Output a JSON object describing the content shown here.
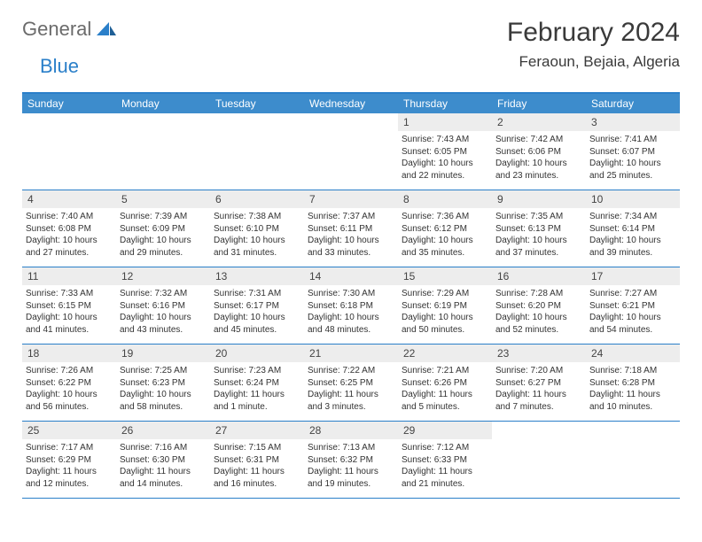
{
  "logo": {
    "text1": "General",
    "text2": "Blue"
  },
  "title": "February 2024",
  "location": "Feraoun, Bejaia, Algeria",
  "colors": {
    "headerBar": "#3d8ccc",
    "borderBlue": "#2a7fc9",
    "dayNumBg": "#ededed",
    "logoGray": "#6b6b6b",
    "logoBlue": "#2a7fc9",
    "textDark": "#3a3a3a"
  },
  "daysOfWeek": [
    "Sunday",
    "Monday",
    "Tuesday",
    "Wednesday",
    "Thursday",
    "Friday",
    "Saturday"
  ],
  "weeks": [
    [
      null,
      null,
      null,
      null,
      {
        "n": "1",
        "sr": "7:43 AM",
        "ss": "6:05 PM",
        "dl": "10 hours and 22 minutes."
      },
      {
        "n": "2",
        "sr": "7:42 AM",
        "ss": "6:06 PM",
        "dl": "10 hours and 23 minutes."
      },
      {
        "n": "3",
        "sr": "7:41 AM",
        "ss": "6:07 PM",
        "dl": "10 hours and 25 minutes."
      }
    ],
    [
      {
        "n": "4",
        "sr": "7:40 AM",
        "ss": "6:08 PM",
        "dl": "10 hours and 27 minutes."
      },
      {
        "n": "5",
        "sr": "7:39 AM",
        "ss": "6:09 PM",
        "dl": "10 hours and 29 minutes."
      },
      {
        "n": "6",
        "sr": "7:38 AM",
        "ss": "6:10 PM",
        "dl": "10 hours and 31 minutes."
      },
      {
        "n": "7",
        "sr": "7:37 AM",
        "ss": "6:11 PM",
        "dl": "10 hours and 33 minutes."
      },
      {
        "n": "8",
        "sr": "7:36 AM",
        "ss": "6:12 PM",
        "dl": "10 hours and 35 minutes."
      },
      {
        "n": "9",
        "sr": "7:35 AM",
        "ss": "6:13 PM",
        "dl": "10 hours and 37 minutes."
      },
      {
        "n": "10",
        "sr": "7:34 AM",
        "ss": "6:14 PM",
        "dl": "10 hours and 39 minutes."
      }
    ],
    [
      {
        "n": "11",
        "sr": "7:33 AM",
        "ss": "6:15 PM",
        "dl": "10 hours and 41 minutes."
      },
      {
        "n": "12",
        "sr": "7:32 AM",
        "ss": "6:16 PM",
        "dl": "10 hours and 43 minutes."
      },
      {
        "n": "13",
        "sr": "7:31 AM",
        "ss": "6:17 PM",
        "dl": "10 hours and 45 minutes."
      },
      {
        "n": "14",
        "sr": "7:30 AM",
        "ss": "6:18 PM",
        "dl": "10 hours and 48 minutes."
      },
      {
        "n": "15",
        "sr": "7:29 AM",
        "ss": "6:19 PM",
        "dl": "10 hours and 50 minutes."
      },
      {
        "n": "16",
        "sr": "7:28 AM",
        "ss": "6:20 PM",
        "dl": "10 hours and 52 minutes."
      },
      {
        "n": "17",
        "sr": "7:27 AM",
        "ss": "6:21 PM",
        "dl": "10 hours and 54 minutes."
      }
    ],
    [
      {
        "n": "18",
        "sr": "7:26 AM",
        "ss": "6:22 PM",
        "dl": "10 hours and 56 minutes."
      },
      {
        "n": "19",
        "sr": "7:25 AM",
        "ss": "6:23 PM",
        "dl": "10 hours and 58 minutes."
      },
      {
        "n": "20",
        "sr": "7:23 AM",
        "ss": "6:24 PM",
        "dl": "11 hours and 1 minute."
      },
      {
        "n": "21",
        "sr": "7:22 AM",
        "ss": "6:25 PM",
        "dl": "11 hours and 3 minutes."
      },
      {
        "n": "22",
        "sr": "7:21 AM",
        "ss": "6:26 PM",
        "dl": "11 hours and 5 minutes."
      },
      {
        "n": "23",
        "sr": "7:20 AM",
        "ss": "6:27 PM",
        "dl": "11 hours and 7 minutes."
      },
      {
        "n": "24",
        "sr": "7:18 AM",
        "ss": "6:28 PM",
        "dl": "11 hours and 10 minutes."
      }
    ],
    [
      {
        "n": "25",
        "sr": "7:17 AM",
        "ss": "6:29 PM",
        "dl": "11 hours and 12 minutes."
      },
      {
        "n": "26",
        "sr": "7:16 AM",
        "ss": "6:30 PM",
        "dl": "11 hours and 14 minutes."
      },
      {
        "n": "27",
        "sr": "7:15 AM",
        "ss": "6:31 PM",
        "dl": "11 hours and 16 minutes."
      },
      {
        "n": "28",
        "sr": "7:13 AM",
        "ss": "6:32 PM",
        "dl": "11 hours and 19 minutes."
      },
      {
        "n": "29",
        "sr": "7:12 AM",
        "ss": "6:33 PM",
        "dl": "11 hours and 21 minutes."
      },
      null,
      null
    ]
  ],
  "labels": {
    "sunrise": "Sunrise: ",
    "sunset": "Sunset: ",
    "daylight": "Daylight: "
  }
}
